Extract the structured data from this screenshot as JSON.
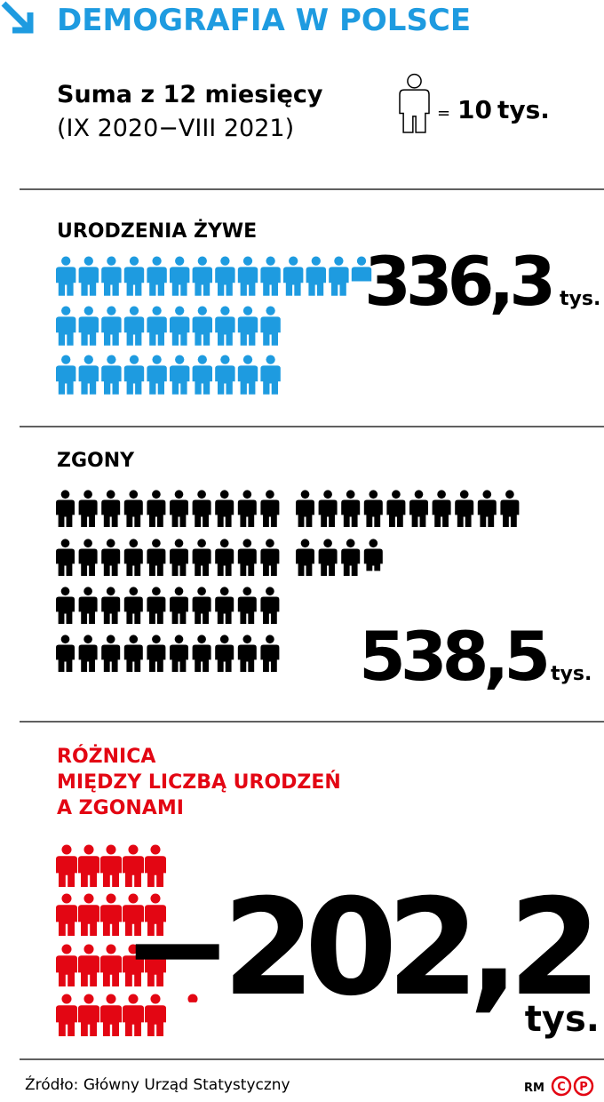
{
  "header": {
    "title": "DEMOGRAFIA W POLSCE",
    "subtitle_line1": "Suma z 12 miesięcy",
    "subtitle_line2": "(IX 2020−VIII 2021)",
    "legend_equals": "=",
    "unit_value": 10,
    "legend_unit": "tys."
  },
  "sections": [
    {
      "label_lines": [
        "URODZENIA ŻYWE"
      ],
      "value": 336.3,
      "value_label": "336,3",
      "unit": "tys.",
      "color": "#1e9be0"
    },
    {
      "label_lines": [
        "ZGONY"
      ],
      "value": 538.5,
      "value_label": "538,5",
      "unit": "tys.",
      "color": "#000000"
    },
    {
      "label_lines": [
        "RÓŻNICA",
        "MIĘDZY LICZBĄ URODZEŃ",
        "A ZGONAMI"
      ],
      "value": -202.2,
      "value_label": "−202,2",
      "unit": "tys.",
      "color": "#e30613"
    }
  ],
  "footer": {
    "source": "Źródło: Główny Urząd Statystyczny",
    "credit": "RM",
    "logo_letters": [
      "C",
      "P"
    ]
  }
}
